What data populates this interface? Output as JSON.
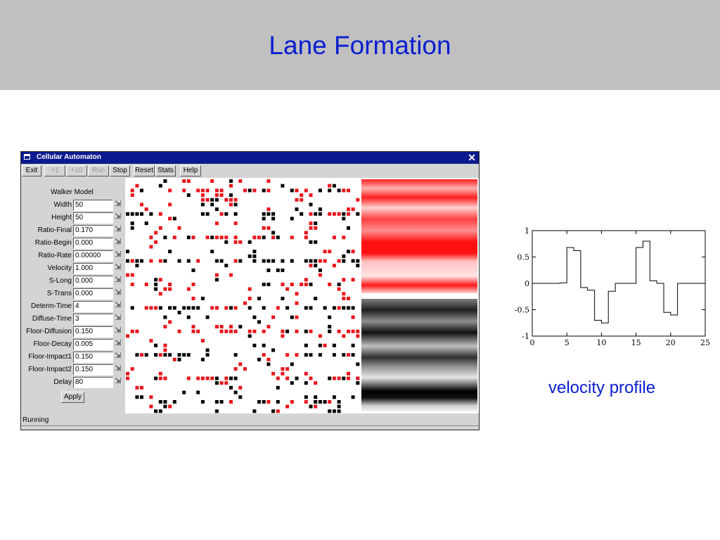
{
  "slide": {
    "title": "Lane Formation"
  },
  "window": {
    "title": "Cellular Automaton",
    "toolbar": [
      {
        "label": "Exit",
        "enabled": true
      },
      {
        "label": "+1",
        "enabled": false
      },
      {
        "label": "+10",
        "enabled": false
      },
      {
        "label": "Run",
        "enabled": false
      },
      {
        "label": "Stop",
        "enabled": true
      },
      {
        "label": "Reset",
        "enabled": true
      },
      {
        "label": "Stats",
        "enabled": true
      },
      {
        "label": "Help",
        "enabled": true
      }
    ],
    "panel": {
      "heading": "Walker Model",
      "params": [
        {
          "label": "Width",
          "value": "50"
        },
        {
          "label": "Height",
          "value": "50"
        },
        {
          "label": "Ratio-Final",
          "value": "0.170"
        },
        {
          "label": "Ratio-Begin",
          "value": "0.000"
        },
        {
          "label": "Ratio-Rate",
          "value": "0.00000"
        },
        {
          "label": "Velocity",
          "value": "1.000"
        },
        {
          "label": "S-Long",
          "value": "0.000"
        },
        {
          "label": "S-Trans",
          "value": "0.000"
        },
        {
          "label": "Determ-Time",
          "value": "4"
        },
        {
          "label": "Diffuse-Time",
          "value": "3"
        },
        {
          "label": "Floor-Diffusion",
          "value": "0.150"
        },
        {
          "label": "Floor-Decay",
          "value": "0.005"
        },
        {
          "label": "Floor-Impact1",
          "value": "0.150"
        },
        {
          "label": "Floor-Impact2",
          "value": "0.150"
        },
        {
          "label": "Delay",
          "value": "80"
        }
      ],
      "apply_label": "Apply"
    },
    "status": "Running",
    "colors": {
      "walker_a": "#e8151b",
      "walker_b": "#000000",
      "titlebar": "#0b1b8f"
    }
  },
  "chart_data": {
    "type": "line",
    "step": true,
    "caption": "velocity profile",
    "xlim": [
      0,
      25
    ],
    "ylim": [
      -1,
      1
    ],
    "xticks": [
      0,
      5,
      10,
      15,
      20,
      25
    ],
    "yticks": [
      -1,
      -0.5,
      0,
      0.5,
      1
    ],
    "x": [
      0,
      1,
      2,
      3,
      4,
      5,
      6,
      7,
      8,
      9,
      10,
      11,
      12,
      13,
      14,
      15,
      16,
      17,
      18,
      19,
      20,
      21,
      22,
      23,
      24,
      25
    ],
    "y": [
      0,
      0,
      0,
      0,
      0.01,
      0.68,
      0.62,
      -0.08,
      -0.13,
      -0.7,
      -0.75,
      -0.15,
      0,
      0,
      0,
      0.68,
      0.8,
      0.05,
      0.0,
      -0.55,
      -0.6,
      0,
      0,
      0,
      0,
      0
    ]
  }
}
